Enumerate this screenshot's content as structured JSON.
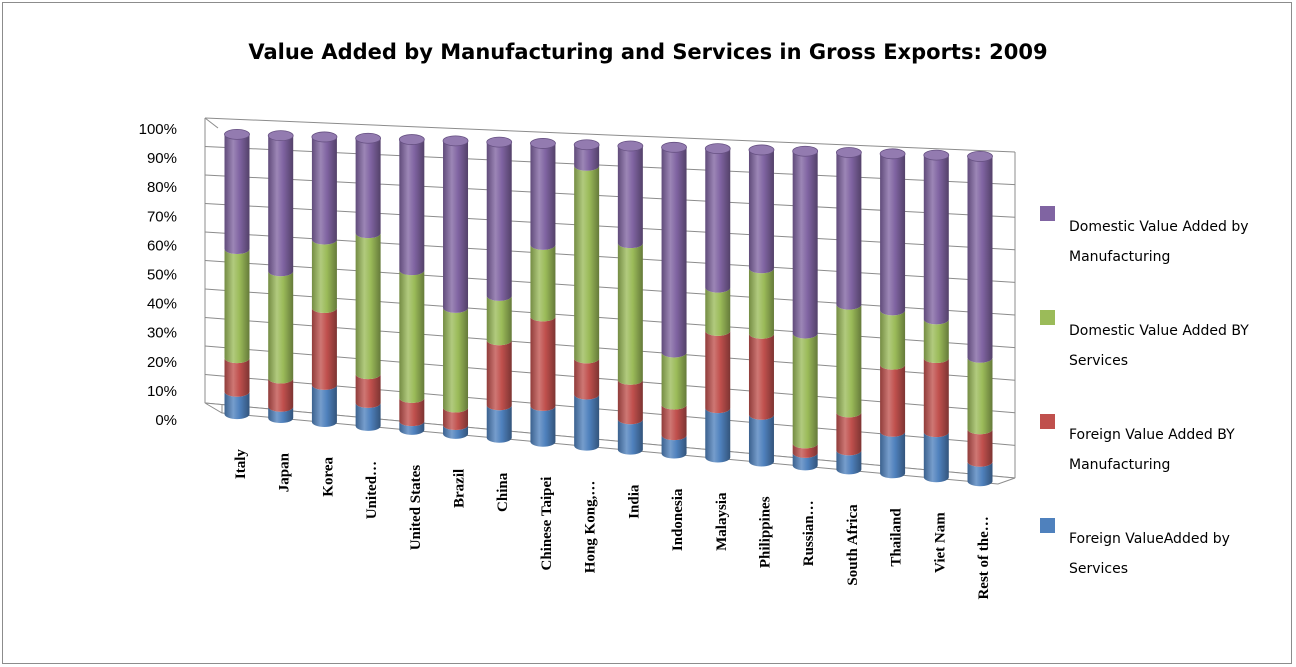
{
  "chart_data": {
    "type": "bar",
    "stacked": true,
    "percent": true,
    "three_d": true,
    "title": "Value Added by Manufacturing and Services in Gross Exports: 2009",
    "xlabel": "",
    "ylabel": "",
    "ylim": [
      0,
      100
    ],
    "y_ticks": [
      "0%",
      "10%",
      "20%",
      "30%",
      "40%",
      "50%",
      "60%",
      "70%",
      "80%",
      "90%",
      "100%"
    ],
    "grid": true,
    "legend_position": "right",
    "categories": [
      "Italy",
      "Japan",
      "Korea",
      "United…",
      "United States",
      "Brazil",
      "China",
      "Chinese Taipei",
      "Hong Kong,…",
      "India",
      "Indonesia",
      "Malaysia",
      "Philippines",
      "Russian…",
      "South Africa",
      "Thailand",
      "Viet Nam",
      "Rest of the…"
    ],
    "series": [
      {
        "name": "Foreign ValueAdded by Services",
        "color": "#4f81bd",
        "values": [
          8,
          4,
          13,
          8,
          3,
          3,
          11,
          12,
          17,
          10,
          6,
          16,
          15,
          4,
          6,
          13,
          14,
          6
        ]
      },
      {
        "name": "Foreign Value Added BY Manufacturing",
        "color": "#c0504d",
        "values": [
          12,
          10,
          27,
          10,
          8,
          6,
          22,
          30,
          12,
          13,
          10,
          25,
          26,
          3,
          12,
          21,
          23,
          10
        ]
      },
      {
        "name": "Domestic Value Added BY Services",
        "color": "#9bbb59",
        "values": [
          39,
          38,
          24,
          49,
          44,
          34,
          15,
          24,
          64,
          45,
          17,
          14,
          21,
          35,
          34,
          17,
          12,
          22
        ]
      },
      {
        "name": "Domestic Value Added by Manufacturing",
        "color": "#8064a2",
        "values": [
          41,
          48,
          36,
          33,
          45,
          57,
          52,
          34,
          7,
          32,
          67,
          45,
          38,
          58,
          48,
          49,
          51,
          62
        ]
      }
    ]
  },
  "legend": [
    {
      "label": "Domestic Value Added by Manufacturing",
      "color": "#8064a2"
    },
    {
      "label": "Domestic Value Added BY Services",
      "color": "#9bbb59"
    },
    {
      "label": "Foreign Value Added BY Manufacturing",
      "color": "#c0504d"
    },
    {
      "label": "Foreign ValueAdded by Services",
      "color": "#4f81bd"
    }
  ]
}
